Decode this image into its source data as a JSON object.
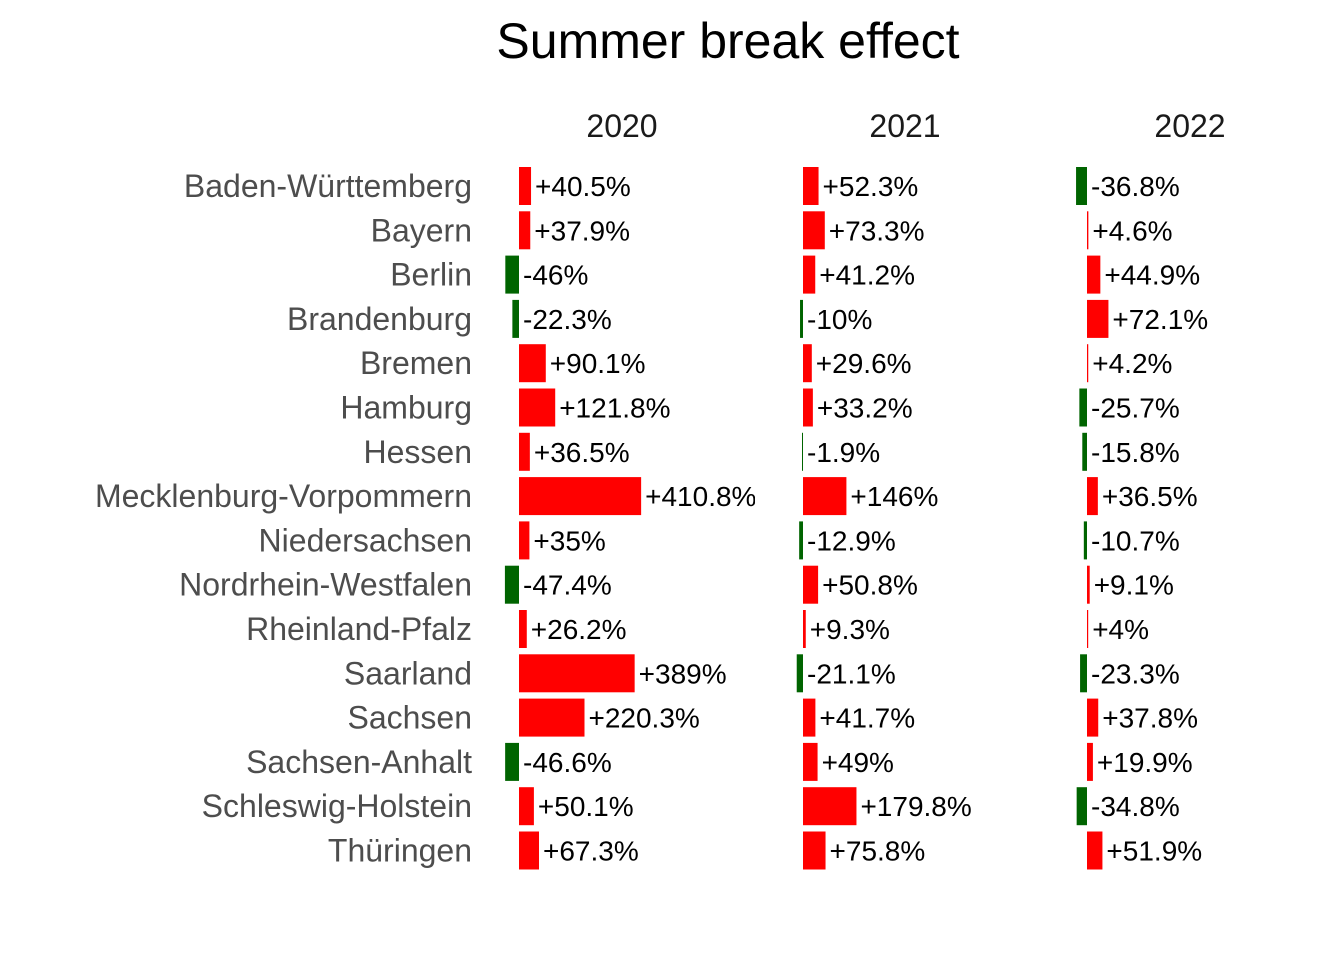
{
  "chart_data": {
    "type": "bar",
    "title": "Summer break effect",
    "facets": [
      "2020",
      "2021",
      "2022"
    ],
    "categories": [
      "Baden-Württemberg",
      "Bayern",
      "Berlin",
      "Brandenburg",
      "Bremen",
      "Hamburg",
      "Hessen",
      "Mecklenburg-Vorpommern",
      "Niedersachsen",
      "Nordrhein-Westfalen",
      "Rheinland-Pfalz",
      "Saarland",
      "Sachsen",
      "Sachsen-Anhalt",
      "Schleswig-Holstein",
      "Thüringen"
    ],
    "series": [
      {
        "name": "2020",
        "values": [
          40.5,
          37.9,
          -46,
          -22.3,
          90.1,
          121.8,
          36.5,
          410.8,
          35,
          -47.4,
          26.2,
          389,
          220.3,
          -46.6,
          50.1,
          67.3
        ],
        "labels": [
          "+40.5%",
          "+37.9%",
          "-46%",
          "-22.3%",
          "+90.1%",
          "+121.8%",
          "+36.5%",
          "+410.8%",
          "+35%",
          "-47.4%",
          "+26.2%",
          "+389%",
          "+220.3%",
          "-46.6%",
          "+50.1%",
          "+67.3%"
        ]
      },
      {
        "name": "2021",
        "values": [
          52.3,
          73.3,
          41.2,
          -10,
          29.6,
          33.2,
          -1.9,
          146,
          -12.9,
          50.8,
          9.3,
          -21.1,
          41.7,
          49,
          179.8,
          75.8
        ],
        "labels": [
          "+52.3%",
          "+73.3%",
          "+41.2%",
          "-10%",
          "+29.6%",
          "+33.2%",
          "-1.9%",
          "+146%",
          "-12.9%",
          "+50.8%",
          "+9.3%",
          "-21.1%",
          "+41.7%",
          "+49%",
          "+179.8%",
          "+75.8%"
        ]
      },
      {
        "name": "2022",
        "values": [
          -36.8,
          4.6,
          44.9,
          72.1,
          4.2,
          -25.7,
          -15.8,
          36.5,
          -10.7,
          9.1,
          4,
          -23.3,
          37.8,
          19.9,
          -34.8,
          51.9
        ],
        "labels": [
          "-36.8%",
          "+4.6%",
          "+44.9%",
          "+72.1%",
          "+4.2%",
          "-25.7%",
          "-15.8%",
          "+36.5%",
          "-10.7%",
          "+9.1%",
          "+4%",
          "-23.3%",
          "+37.8%",
          "+19.9%",
          "-34.8%",
          "+51.9%"
        ]
      }
    ],
    "colors": {
      "positive": "#ff0000",
      "negative": "#006400"
    },
    "grid": false,
    "legend": "none"
  }
}
